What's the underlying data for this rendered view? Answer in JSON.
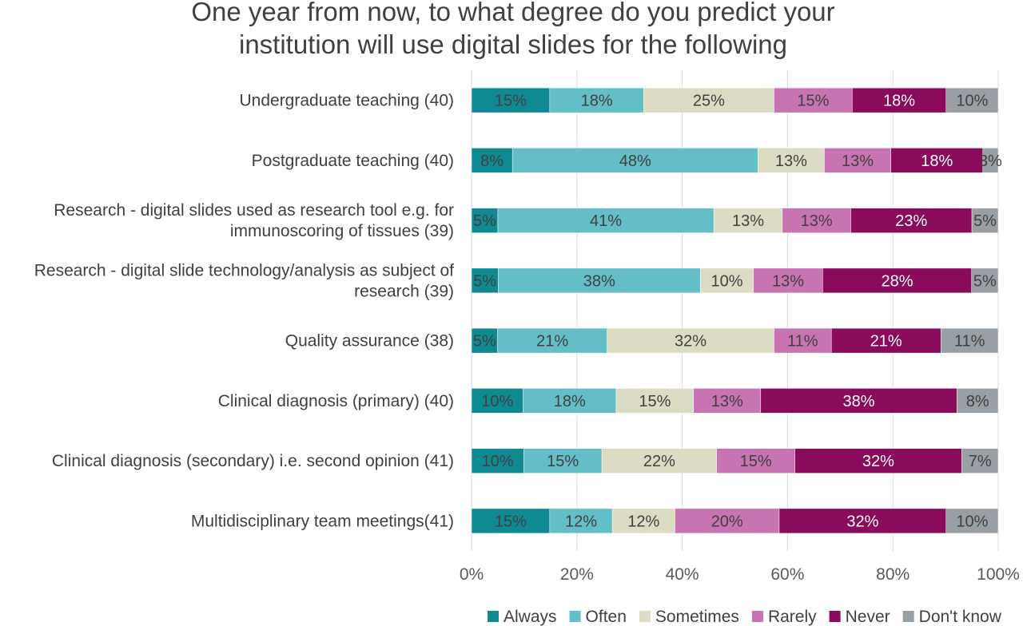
{
  "chart_data": {
    "type": "bar",
    "orientation": "horizontal",
    "stacked": "100%",
    "title": [
      "One year from now, to what degree do you  predict your",
      "institution will use digital slides for the following"
    ],
    "categories": [
      [
        "Undergraduate teaching (40)"
      ],
      [
        "Postgraduate teaching (40)"
      ],
      [
        "Research - digital slides used as research tool e.g. for",
        "immunoscoring of tissues (39)"
      ],
      [
        "Research - digital slide technology/analysis as subject of",
        "research (39)"
      ],
      [
        "Quality assurance (38)"
      ],
      [
        "Clinical diagnosis (primary) (40)"
      ],
      [
        "Clinical diagnosis (secondary) i.e. second opinion (41)"
      ],
      [
        "Multidisciplinary team meetings(41)"
      ]
    ],
    "series": [
      {
        "name": "Always",
        "color": "#0f8a93",
        "label_color": "#404040",
        "values": [
          15,
          8,
          5,
          5,
          5,
          10,
          10,
          15
        ],
        "labels": [
          "15%",
          "8%",
          "5%",
          "5%",
          "5%",
          "10%",
          "10%",
          "15%"
        ]
      },
      {
        "name": "Often",
        "color": "#64bec8",
        "label_color": "#404040",
        "values": [
          18,
          48,
          41,
          38,
          21,
          18,
          15,
          12
        ],
        "labels": [
          "18%",
          "48%",
          "41%",
          "38%",
          "21%",
          "18%",
          "15%",
          "12%"
        ]
      },
      {
        "name": "Sometimes",
        "color": "#dcdcc4",
        "label_color": "#404040",
        "values": [
          25,
          13,
          13,
          10,
          32,
          15,
          22,
          12
        ],
        "labels": [
          "25%",
          "13%",
          "13%",
          "10%",
          "32%",
          "15%",
          "22%",
          "12%"
        ]
      },
      {
        "name": "Rarely",
        "color": "#c874b2",
        "label_color": "#404040",
        "values": [
          15,
          13,
          13,
          13,
          11,
          13,
          15,
          20
        ],
        "labels": [
          "15%",
          "13%",
          "13%",
          "13%",
          "11%",
          "13%",
          "15%",
          "20%"
        ]
      },
      {
        "name": "Never",
        "color": "#8a0a5c",
        "label_color": "#ffffff",
        "values": [
          18,
          18,
          23,
          28,
          21,
          38,
          32,
          32
        ],
        "labels": [
          "18%",
          "18%",
          "23%",
          "28%",
          "21%",
          "38%",
          "32%",
          "32%"
        ]
      },
      {
        "name": "Don't know",
        "color": "#98a0a6",
        "label_color": "#404040",
        "values": [
          10,
          3,
          5,
          5,
          11,
          8,
          7,
          10
        ],
        "labels": [
          "10%",
          "3%",
          "5%",
          "5%",
          "11%",
          "8%",
          "7%",
          "10%"
        ]
      }
    ],
    "x_ticks": [
      "0%",
      "20%",
      "40%",
      "60%",
      "80%",
      "100%"
    ],
    "xlim": [
      0,
      100
    ],
    "grid": "vertical",
    "legend_position": "bottom"
  }
}
